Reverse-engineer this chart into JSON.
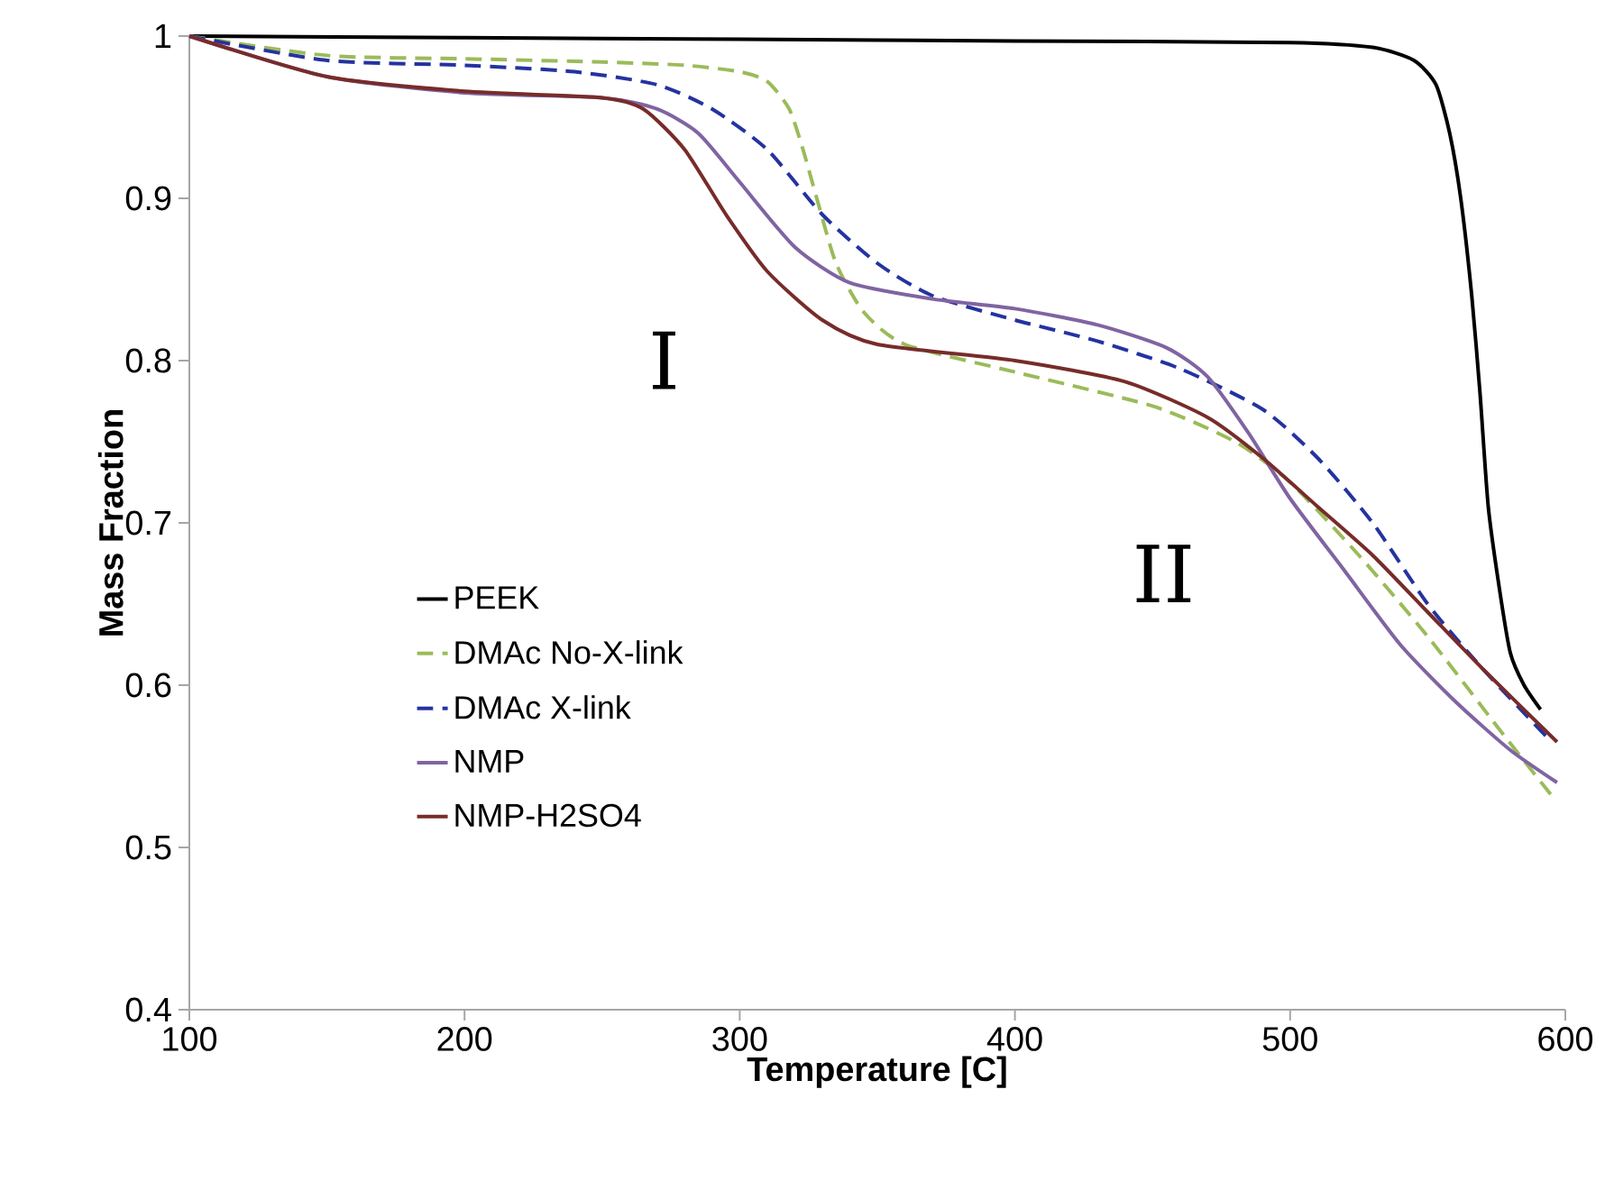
{
  "chart_data": {
    "type": "line",
    "xlabel": "Temperature [C]",
    "ylabel": "Mass Fraction",
    "xlim": [
      100,
      600
    ],
    "xticks": [
      100,
      200,
      300,
      400,
      500,
      600
    ],
    "ylim": [
      0.4,
      1
    ],
    "yticks": [
      0.4,
      0.5,
      0.6,
      0.7,
      0.8,
      0.9,
      1
    ],
    "grid": false,
    "legend": "left",
    "marker": "none",
    "annotations": [
      "I",
      "II"
    ],
    "series": [
      {
        "name": "PEEK",
        "color": "#000000",
        "line_style": "solid",
        "x": [
          100,
          200,
          300,
          400,
          500,
          530,
          545,
          553,
          558,
          562,
          566,
          569,
          572,
          576,
          580,
          585,
          591
        ],
        "values": [
          1,
          0.999,
          0.998,
          0.997,
          0.996,
          0.993,
          0.985,
          0.97,
          0.94,
          0.9,
          0.84,
          0.78,
          0.71,
          0.66,
          0.62,
          0.6,
          0.585
        ]
      },
      {
        "name": "DMAc No-X-link",
        "color": "#9bbb59",
        "line_style": "dashed",
        "x": [
          100,
          150,
          200,
          250,
          280,
          300,
          310,
          318,
          323,
          328,
          335,
          345,
          360,
          400,
          450,
          480,
          500,
          525,
          550,
          575,
          595
        ],
        "values": [
          1,
          0.988,
          0.986,
          0.984,
          0.982,
          0.978,
          0.972,
          0.955,
          0.93,
          0.9,
          0.86,
          0.83,
          0.81,
          0.793,
          0.772,
          0.75,
          0.725,
          0.68,
          0.63,
          0.575,
          0.532
        ]
      },
      {
        "name": "DMAc X-link",
        "color": "#2433a0",
        "line_style": "dashed",
        "x": [
          100,
          150,
          200,
          240,
          270,
          290,
          310,
          330,
          350,
          370,
          400,
          430,
          460,
          490,
          510,
          530,
          550,
          570,
          595
        ],
        "values": [
          1,
          0.985,
          0.982,
          0.978,
          0.97,
          0.955,
          0.93,
          0.89,
          0.86,
          0.84,
          0.825,
          0.812,
          0.795,
          0.77,
          0.74,
          0.7,
          0.65,
          0.61,
          0.565
        ]
      },
      {
        "name": "NMP",
        "color": "#8064a2",
        "line_style": "solid",
        "x": [
          100,
          150,
          200,
          250,
          270,
          285,
          300,
          320,
          340,
          370,
          400,
          430,
          455,
          470,
          485,
          500,
          520,
          540,
          560,
          580,
          597
        ],
        "values": [
          1,
          0.975,
          0.965,
          0.962,
          0.955,
          0.94,
          0.91,
          0.87,
          0.848,
          0.838,
          0.832,
          0.822,
          0.808,
          0.79,
          0.755,
          0.715,
          0.67,
          0.625,
          0.59,
          0.56,
          0.54
        ]
      },
      {
        "name": "NMP-H2SO4",
        "color": "#772c2a",
        "line_style": "solid",
        "x": [
          100,
          150,
          200,
          250,
          265,
          280,
          295,
          310,
          330,
          350,
          400,
          440,
          470,
          490,
          510,
          530,
          550,
          570,
          597
        ],
        "values": [
          1,
          0.975,
          0.966,
          0.962,
          0.955,
          0.93,
          0.89,
          0.855,
          0.825,
          0.81,
          0.8,
          0.787,
          0.765,
          0.74,
          0.71,
          0.68,
          0.645,
          0.61,
          0.565
        ]
      }
    ]
  }
}
